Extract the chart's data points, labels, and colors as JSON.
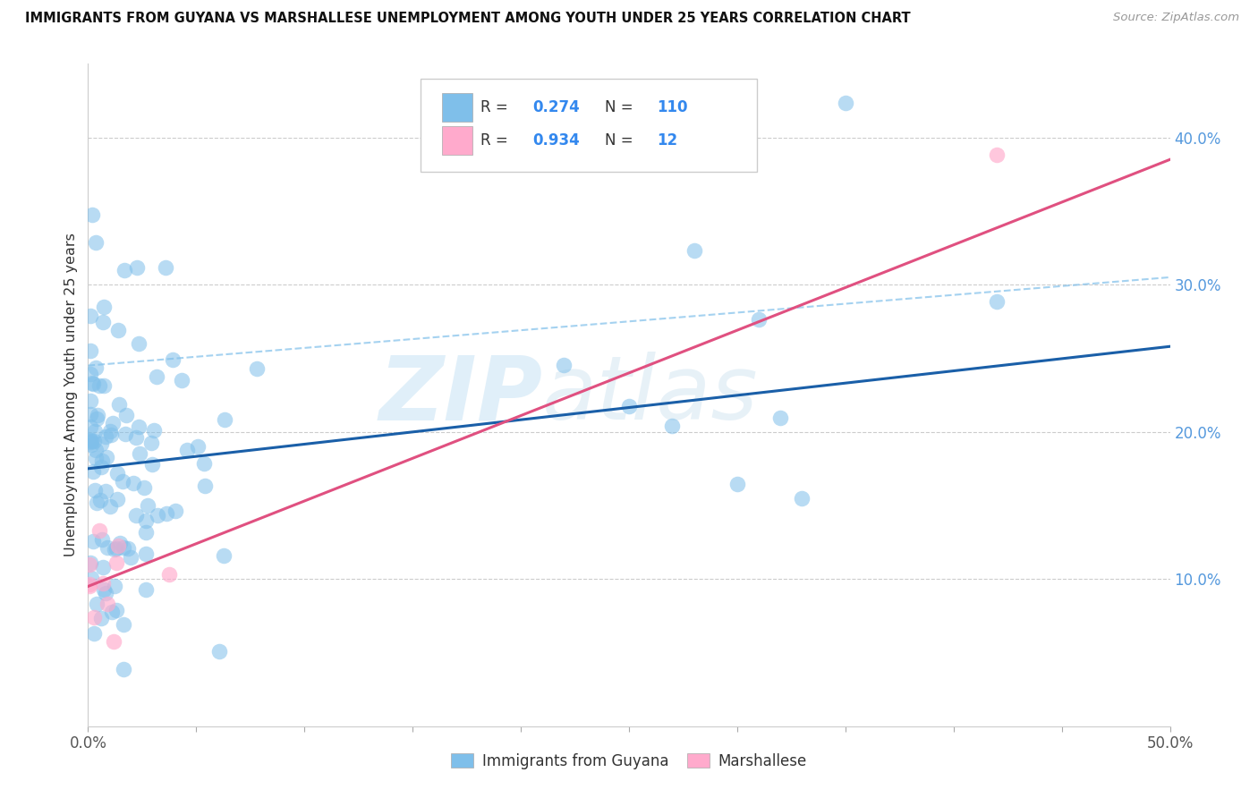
{
  "title": "IMMIGRANTS FROM GUYANA VS MARSHALLESE UNEMPLOYMENT AMONG YOUTH UNDER 25 YEARS CORRELATION CHART",
  "source": "Source: ZipAtlas.com",
  "ylabel": "Unemployment Among Youth under 25 years",
  "xlim": [
    0.0,
    0.5
  ],
  "ylim": [
    0.0,
    0.45
  ],
  "xticklabels_pos": [
    0.0,
    0.5
  ],
  "xticklabels": [
    "0.0%",
    "50.0%"
  ],
  "yticks_right": [
    0.1,
    0.2,
    0.3,
    0.4
  ],
  "yticklabels_right": [
    "10.0%",
    "20.0%",
    "30.0%",
    "40.0%"
  ],
  "R_blue": 0.274,
  "N_blue": 110,
  "R_pink": 0.934,
  "N_pink": 12,
  "color_blue": "#7fbfea",
  "color_pink": "#ffaacc",
  "line_blue": "#1a5fa8",
  "line_pink": "#e05080",
  "line_dash_color": "#7fbfea",
  "blue_line_x0": 0.0,
  "blue_line_y0": 0.175,
  "blue_line_x1": 0.5,
  "blue_line_y1": 0.258,
  "pink_line_x0": 0.0,
  "pink_line_y0": 0.095,
  "pink_line_x1": 0.5,
  "pink_line_y1": 0.385,
  "dash_line_x0": 0.0,
  "dash_line_y0": 0.245,
  "dash_line_x1": 0.5,
  "dash_line_y1": 0.305,
  "seed_blue": 42,
  "seed_pink": 99,
  "n_blue": 110,
  "n_pink": 12
}
